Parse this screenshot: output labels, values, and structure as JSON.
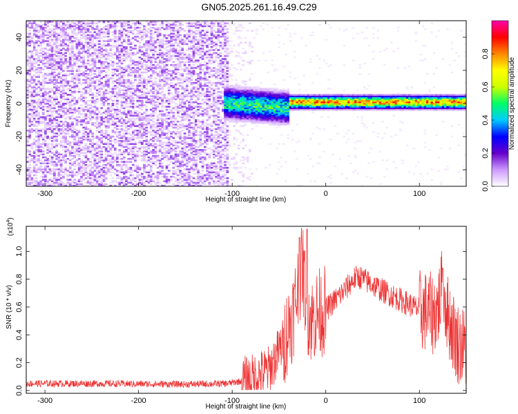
{
  "title": "GN05.2025.261.16.49.C29",
  "chart_data": [
    {
      "type": "heatmap",
      "xlabel": "Height of straight line (km)",
      "ylabel": "Frequency (Hz)",
      "xlim": [
        -320,
        150
      ],
      "ylim": [
        -50,
        50
      ],
      "xticks": [
        -300,
        -200,
        -100,
        0,
        100
      ],
      "yticks": [
        -40,
        -20,
        0,
        20,
        40
      ],
      "colorbar": {
        "label": "Normalized spectral amplitude",
        "range": [
          0,
          1
        ],
        "ticks": [
          "0.0",
          "0.2",
          "0.4",
          "0.6",
          "0.8"
        ],
        "colors": [
          "#ffffff",
          "#cc99ff",
          "#6600cc",
          "#0000ff",
          "#00ccff",
          "#00ff66",
          "#ccff00",
          "#ffff00",
          "#ff8800",
          "#ff0000",
          "#ff00aa"
        ]
      },
      "features": [
        {
          "x_range": [
            -320,
            -105
          ],
          "freq_range": [
            -50,
            50
          ],
          "level": 0.08
        },
        {
          "x_range": [
            -105,
            -80
          ],
          "freq_range": [
            -50,
            50
          ],
          "level": 0.03
        },
        {
          "x_range": [
            -110,
            -40
          ],
          "center_freq": 0,
          "halfwidth_hz": 5,
          "level": 0.45
        },
        {
          "x_range": [
            -40,
            150
          ],
          "center_freq": 0.5,
          "halfwidth_hz": 2,
          "level": 0.85
        }
      ]
    },
    {
      "type": "line",
      "xlabel": "Height of straight line (km)",
      "ylabel": "SNR (10 * v/v)",
      "y_multiplier": "(x10",
      "y_multiplier_exp": "4",
      "y_multiplier_close": ")",
      "xlim": [
        -320,
        150
      ],
      "ylim": [
        -0.02,
        1.18
      ],
      "xticks": [
        -300,
        -200,
        -100,
        0,
        100
      ],
      "yticks": [
        "0.0",
        "0.2",
        "0.4",
        "0.6",
        "0.8",
        "1.0"
      ],
      "color": "#ee3333",
      "envelope": {
        "x": [
          -320,
          -250,
          -150,
          -105,
          -80,
          -60,
          -45,
          -35,
          -28,
          -25,
          -20,
          -15,
          -10,
          0,
          10,
          20,
          30,
          35,
          45,
          60,
          80,
          100,
          115,
          120,
          125,
          130,
          140,
          150
        ],
        "y": [
          0.05,
          0.05,
          0.045,
          0.05,
          0.08,
          0.15,
          0.35,
          0.55,
          0.8,
          0.9,
          0.6,
          0.5,
          0.55,
          0.58,
          0.65,
          0.72,
          0.8,
          0.82,
          0.78,
          0.72,
          0.65,
          0.58,
          0.55,
          0.6,
          0.75,
          0.55,
          0.35,
          0.3
        ]
      },
      "peaks": [
        {
          "x": -28,
          "y": 1.1
        },
        {
          "x": -20,
          "y": 1.16
        },
        {
          "x": 33,
          "y": 0.86
        },
        {
          "x": 125,
          "y": 0.88
        }
      ]
    }
  ]
}
